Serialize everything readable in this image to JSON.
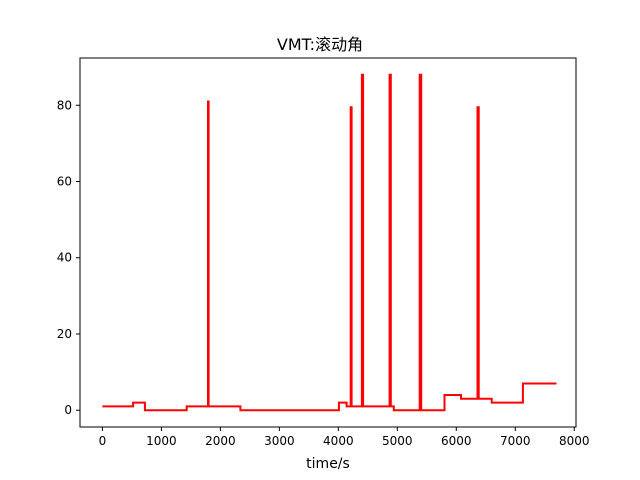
{
  "chart_data": {
    "type": "line",
    "title": "VMT:滚动角",
    "xlabel": "time/s",
    "ylabel": "",
    "xlim": [
      -380,
      8030
    ],
    "ylim": [
      -4.4,
      92.4
    ],
    "xticks": [
      0,
      1000,
      2000,
      3000,
      4000,
      5000,
      6000,
      7000,
      8000
    ],
    "yticks": [
      0,
      20,
      40,
      60,
      80
    ],
    "grid": false,
    "series": [
      {
        "color": "#ff0000",
        "step": true,
        "points": [
          [
            0,
            1
          ],
          [
            520,
            1
          ],
          [
            520,
            2
          ],
          [
            720,
            2
          ],
          [
            720,
            0
          ],
          [
            1430,
            0
          ],
          [
            1430,
            1
          ],
          [
            1790,
            1
          ],
          [
            1790,
            81
          ],
          [
            1800,
            81
          ],
          [
            1800,
            1
          ],
          [
            2340,
            1
          ],
          [
            2340,
            0
          ],
          [
            4010,
            0
          ],
          [
            4010,
            2
          ],
          [
            4140,
            2
          ],
          [
            4140,
            1
          ],
          [
            4210,
            1
          ],
          [
            4210,
            79.5
          ],
          [
            4225,
            79.5
          ],
          [
            4225,
            1
          ],
          [
            4400,
            1
          ],
          [
            4400,
            88
          ],
          [
            4420,
            88
          ],
          [
            4420,
            1
          ],
          [
            4870,
            1
          ],
          [
            4870,
            88
          ],
          [
            4890,
            88
          ],
          [
            4890,
            1
          ],
          [
            4940,
            1
          ],
          [
            4940,
            0
          ],
          [
            5380,
            0
          ],
          [
            5380,
            88
          ],
          [
            5405,
            88
          ],
          [
            5405,
            0
          ],
          [
            5800,
            0
          ],
          [
            5800,
            4
          ],
          [
            6080,
            4
          ],
          [
            6080,
            3
          ],
          [
            6360,
            3
          ],
          [
            6360,
            79.5
          ],
          [
            6380,
            79.5
          ],
          [
            6380,
            3
          ],
          [
            6600,
            3
          ],
          [
            6600,
            2
          ],
          [
            7130,
            2
          ],
          [
            7130,
            7
          ],
          [
            7700,
            7
          ]
        ]
      }
    ]
  }
}
